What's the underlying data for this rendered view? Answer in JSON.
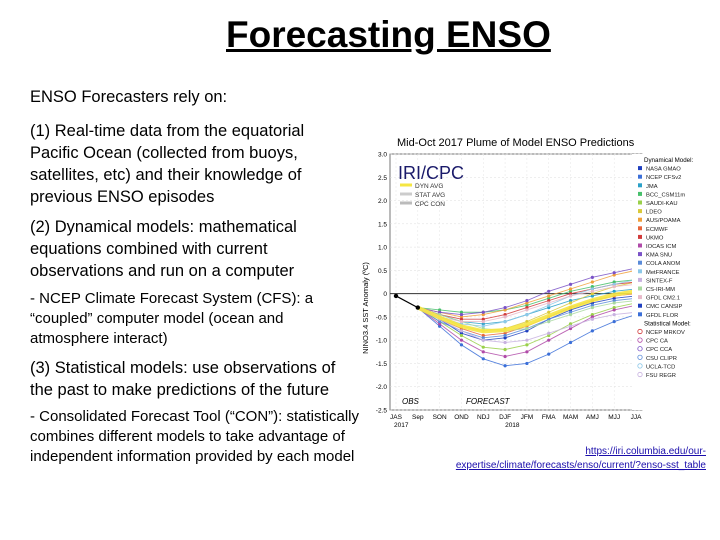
{
  "slide": {
    "title": "Forecasting ENSO",
    "intro": "ENSO Forecasters rely on:",
    "point1": "(1)  Real-time data from the equatorial Pacific Ocean (collected from buoys, satellites, etc) and their knowledge of previous ENSO episodes",
    "point2": "(2)  Dynamical models:  mathematical equations combined with current observations and run on a computer",
    "point2_detail": "-  NCEP Climate Forecast System (CFS): a “coupled” computer model (ocean and atmosphere interact)",
    "point3": "(3)  Statistical models:  use observations of the past to make predictions of the future",
    "point3_detail": "-   Consolidated Forecast Tool (“CON”): statistically combines different models to take advantage of independent information provided by each model",
    "link": "https://iri.columbia.edu/our-expertise/climate/forecasts/enso/current/?enso-sst_table"
  },
  "chart_data": {
    "type": "line",
    "title": "Mid-Oct 2017 Plume of Model ENSO Predictions",
    "ylabel": "NINO3.4 SST Anomaly (ºC)",
    "ylim": [
      -2.5,
      3.0
    ],
    "yticks": [
      "3.0",
      "2.5",
      "2.0",
      "1.5",
      "1.0",
      "0.5",
      "0",
      "-0.5",
      "-1.0",
      "-1.5",
      "-2.0",
      "-2.5"
    ],
    "categories": [
      "JAS",
      "Sep",
      "SON",
      "OND",
      "NDJ",
      "DJF",
      "JFM",
      "FMA",
      "MAM",
      "AMJ",
      "MJJ",
      "JJA"
    ],
    "year_labels": [
      "2017",
      "2018"
    ],
    "logo": "IRI/CPC",
    "obs_label": "OBS",
    "forecast_label": "FORECAST",
    "inner_legend": [
      "DYN AVG",
      "STAT AVG",
      "CPC CON"
    ],
    "legend_dynamical_title": "Dynamical Model:",
    "legend_dynamical": [
      "NASA GMAO",
      "NCEP CFSv2",
      "JMA",
      "BCC_CSM11m",
      "SAUDI-KAU",
      "LDEO",
      "AUS/POAMA",
      "ECMWF",
      "UKMO",
      "IOCAS ICM",
      "KMA SNU",
      "COLA ANOM",
      "MetFRANCE",
      "SINTEX-F",
      "CS-IRI-MM",
      "GFDL CM2.1",
      "CMC CANSIP",
      "GFDL FLOR"
    ],
    "legend_statistical_title": "Statistical Model:",
    "legend_statistical": [
      "NCEP MRKOV",
      "CPC CA",
      "CPC CCA",
      "CSU CLIPR",
      "UCLA-TCD",
      "FSU REGR"
    ],
    "observed": [
      -0.05,
      -0.3
    ],
    "series": [
      {
        "values": [
          null,
          -0.3,
          -0.55,
          -0.85,
          -1.0,
          -0.95,
          -0.8,
          -0.55,
          -0.35,
          -0.2,
          -0.1,
          -0.05
        ]
      },
      {
        "values": [
          null,
          -0.3,
          -0.7,
          -1.1,
          -1.4,
          -1.55,
          -1.5,
          -1.3,
          -1.05,
          -0.8,
          -0.6,
          -0.45
        ]
      },
      {
        "values": [
          null,
          -0.3,
          -0.45,
          -0.6,
          -0.65,
          -0.6,
          -0.45,
          -0.3,
          -0.15,
          -0.05,
          0.05,
          0.1
        ]
      },
      {
        "values": [
          null,
          -0.3,
          -0.35,
          -0.4,
          -0.4,
          -0.35,
          -0.25,
          -0.1,
          0.05,
          0.15,
          0.25,
          0.3
        ]
      },
      {
        "values": [
          null,
          -0.3,
          -0.6,
          -0.9,
          -1.15,
          -1.2,
          -1.1,
          -0.9,
          -0.65,
          -0.45,
          -0.3,
          -0.2
        ]
      },
      {
        "values": [
          null,
          -0.3,
          -0.5,
          -0.7,
          -0.8,
          -0.75,
          -0.6,
          -0.4,
          -0.2,
          0.0,
          0.15,
          0.25
        ]
      },
      {
        "values": [
          null,
          -0.3,
          -0.4,
          -0.5,
          -0.45,
          -0.35,
          -0.2,
          -0.05,
          0.1,
          0.25,
          0.4,
          0.5
        ]
      },
      {
        "values": [
          null,
          -0.3,
          -0.55,
          -0.75,
          -0.9,
          -0.85,
          -0.7,
          -0.5,
          -0.3,
          -0.15,
          -0.05,
          0.0
        ]
      },
      {
        "values": [
          null,
          -0.3,
          -0.45,
          -0.55,
          -0.55,
          -0.45,
          -0.3,
          -0.15,
          0.0,
          0.1,
          0.2,
          0.25
        ]
      },
      {
        "values": [
          null,
          -0.3,
          -0.65,
          -1.0,
          -1.25,
          -1.35,
          -1.25,
          -1.0,
          -0.75,
          -0.5,
          -0.35,
          -0.25
        ]
      },
      {
        "values": [
          null,
          -0.3,
          -0.4,
          -0.45,
          -0.4,
          -0.3,
          -0.15,
          0.05,
          0.2,
          0.35,
          0.45,
          0.55
        ]
      },
      {
        "values": [
          null,
          -0.3,
          -0.6,
          -0.8,
          -0.95,
          -0.9,
          -0.75,
          -0.55,
          -0.4,
          -0.25,
          -0.15,
          -0.1
        ]
      },
      {
        "values": [
          null,
          -0.3,
          -0.5,
          -0.65,
          -0.7,
          -0.6,
          -0.45,
          -0.25,
          -0.05,
          0.1,
          0.2,
          0.3
        ]
      },
      {
        "values": [
          null,
          -0.3,
          -0.55,
          -0.8,
          -1.0,
          -1.05,
          -1.0,
          -0.85,
          -0.7,
          -0.55,
          -0.45,
          -0.4
        ]
      },
      {
        "values": [
          null,
          -0.3,
          -0.45,
          -0.6,
          -0.75,
          -0.8,
          -0.75,
          -0.6,
          -0.45,
          -0.3,
          -0.2,
          -0.15
        ]
      },
      {
        "values": [
          null,
          -0.3,
          -0.5,
          -0.6,
          -0.6,
          -0.5,
          -0.35,
          -0.2,
          -0.05,
          0.05,
          0.15,
          0.2
        ]
      }
    ],
    "colors": [
      "#1f3fbf",
      "#3b6fd8",
      "#2aa0c8",
      "#47c06b",
      "#9ad04a",
      "#d9c93a",
      "#f0a03a",
      "#e8663a",
      "#d13b3b",
      "#b04aa8",
      "#7a52c7",
      "#5a8bd9",
      "#8cc8e8",
      "#c8b2e0",
      "#a9d9a0",
      "#e8b9c9"
    ],
    "avg_color": "#f5e642"
  }
}
